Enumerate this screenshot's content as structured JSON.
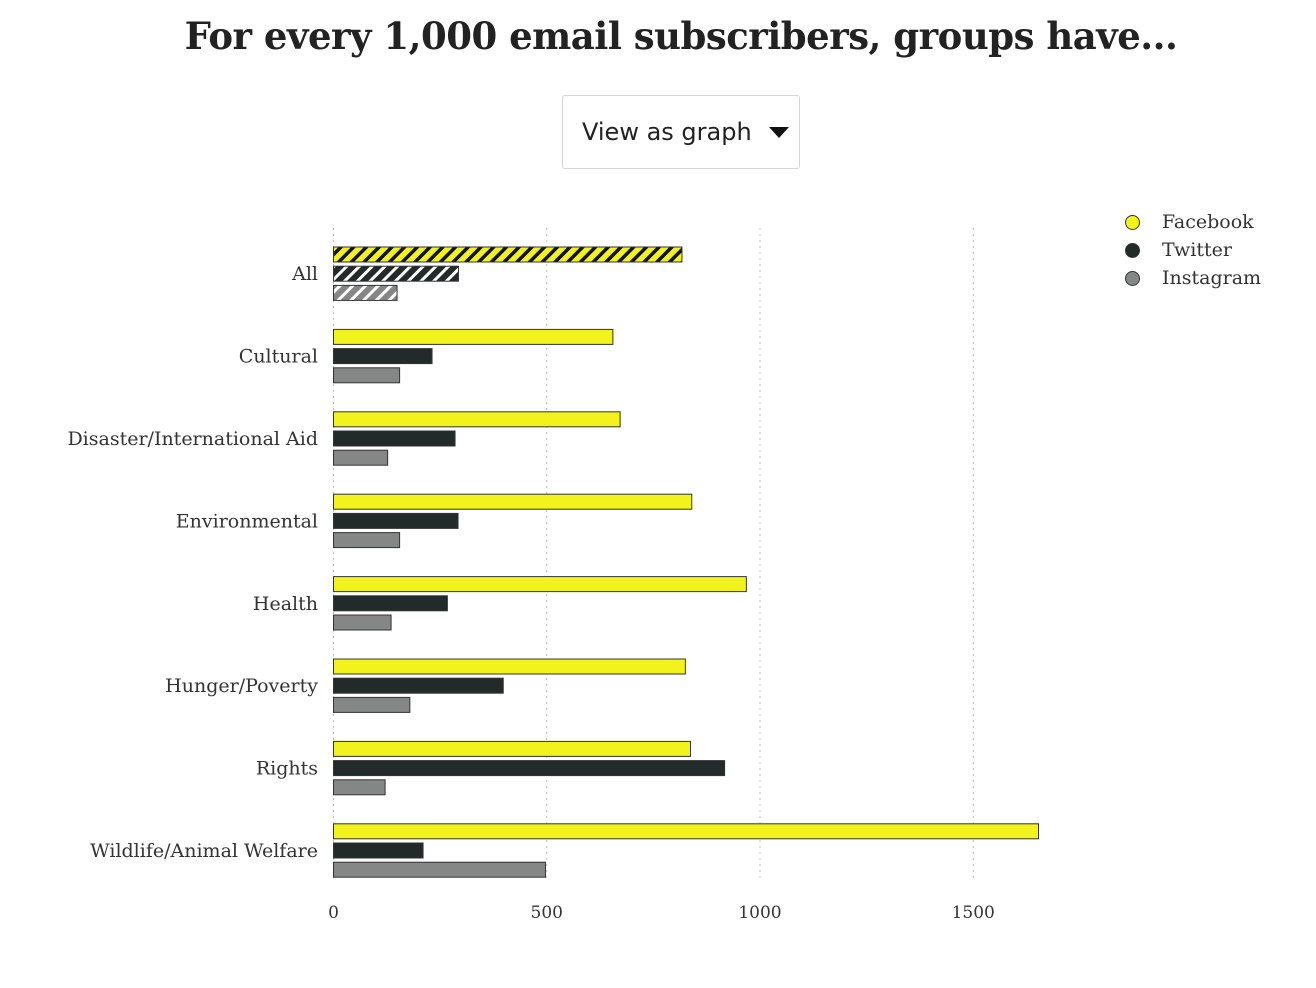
{
  "header": {
    "title": "For every 1,000 email subscribers, groups have..."
  },
  "view_selector": {
    "label": "View as graph",
    "icon": "caret-down-icon"
  },
  "colors": {
    "facebook": "#f2f21d",
    "twitter": "#222a2a",
    "instagram": "#858786",
    "gridline": "#bbbbbb"
  },
  "chart_data": {
    "type": "bar",
    "orientation": "horizontal",
    "title": "For every 1,000 email subscribers, groups have...",
    "categories": [
      "All",
      "Cultural",
      "Disaster/International Aid",
      "Environmental",
      "Health",
      "Hunger/Poverty",
      "Rights",
      "Wildlife/Animal Welfare"
    ],
    "series": [
      {
        "name": "Facebook",
        "values": [
          817,
          655,
          672,
          840,
          968,
          825,
          837,
          1653
        ]
      },
      {
        "name": "Twitter",
        "values": [
          293,
          231,
          285,
          292,
          267,
          398,
          917,
          210
        ]
      },
      {
        "name": "Instagram",
        "values": [
          149,
          155,
          127,
          155,
          135,
          179,
          121,
          497
        ]
      }
    ],
    "highlighted_category": "All",
    "xlim": [
      0,
      1750
    ],
    "xticks": [
      0,
      500,
      1000,
      1500
    ],
    "xtick_labels": [
      "0",
      "500",
      "1000",
      "1500"
    ],
    "grid": "vertical dotted",
    "legend_position": "top-right"
  }
}
